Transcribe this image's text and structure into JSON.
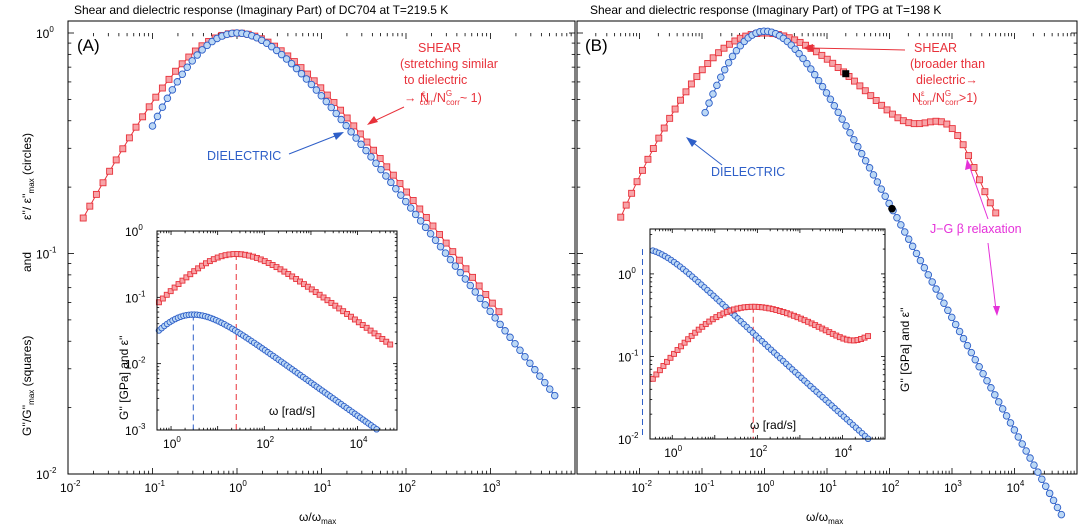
{
  "colors": {
    "shear": "#e8323b",
    "shear_fill": "#f7a4a8",
    "dielectric": "#2e5fc8",
    "dielectric_fill": "#bcd8f5",
    "annotation_magenta": "#e531d9",
    "marker_black": "#000000"
  },
  "y_axis_label": {
    "part1": "G''/G''",
    "part1_sub": "max",
    "part1_tail": " (squares)",
    "part2": "and",
    "part3": "ε''/ ε''",
    "part3_sub": "max",
    "part3_tail": " (circles)"
  },
  "chart_data": [
    {
      "panel": "A",
      "type": "scatter",
      "title": "Shear and dielectric response (Imaginary Part) of DC704 at T=219.5 K",
      "panel_label": "(A)",
      "xlabel": "ω/ω",
      "xlabel_sub": "max",
      "xscale": "log",
      "yscale": "log",
      "xlim": [
        0.01,
        10000
      ],
      "ylim": [
        0.01,
        1
      ],
      "xticks": [
        0.01,
        0.1,
        1,
        10,
        100,
        1000
      ],
      "yticks": [
        0.01,
        0.1,
        1
      ],
      "series": [
        {
          "kind": "shear",
          "marker": "square",
          "logx_range": [
            -1.82,
            3.1
          ],
          "n": 64,
          "peak_logx": 0,
          "left_slope": 0.72,
          "right_slope": 0.5,
          "width": 0.8
        },
        {
          "kind": "dielectric",
          "marker": "circle",
          "logx_range": [
            -1.0,
            3.76
          ],
          "n": 82,
          "peak_logx": 0,
          "left_slope": 0.92,
          "right_slope": 0.5,
          "width": 0.8
        }
      ],
      "annotations": [
        {
          "lines": [
            {
              "t": "SHEAR"
            },
            {
              "t": "(stretching similar"
            },
            {
              "t": "to dielectric"
            },
            {
              "t": "→ N",
              "sup": "ε",
              "sub": "corr",
              "t2": "/N",
              "sup2": "G",
              "sub2": "corr",
              "t3": "~ 1)"
            }
          ],
          "color": "shear"
        },
        {
          "lines": [
            {
              "t": "DIELECTRIC"
            }
          ],
          "color": "dielectric"
        }
      ],
      "inset": {
        "ylabel": "G'' [GPa] and ε''",
        "xlabel": "ω [rad/s]",
        "xlim": [
          0.5,
          70000
        ],
        "ylim": [
          0.001,
          1
        ],
        "xticks": [
          1,
          100,
          10000
        ],
        "yticks": [
          0.001,
          0.01,
          0.1,
          1
        ],
        "series": [
          {
            "kind": "shear",
            "marker": "square",
            "peak_x": 25,
            "peak_y": 0.45,
            "x_range": [
              0.55,
              50000
            ],
            "n": 60,
            "left_slope": 0.72,
            "right_slope": 0.5,
            "width": 0.8
          },
          {
            "kind": "dielectric",
            "marker": "circle",
            "peak_x": 3,
            "peak_y": 0.055,
            "x_range": [
              0.55,
              50000
            ],
            "n": 86,
            "left_slope": 0.92,
            "right_slope": 0.5,
            "width": 0.8
          }
        ],
        "peak_lines": [
          {
            "kind": "dielectric",
            "x": 3
          },
          {
            "kind": "shear",
            "x": 25
          }
        ]
      }
    },
    {
      "panel": "B",
      "type": "scatter",
      "title": "Shear and dielectric response (Imaginary Part) of TPG at T=198 K",
      "panel_label": "(B)",
      "xlabel": "ω/ω",
      "xlabel_sub": "max",
      "xscale": "log",
      "yscale": "log",
      "xlim": [
        0.001,
        100000
      ],
      "ylim": [
        0.01,
        1
      ],
      "xticks": [
        0.01,
        0.1,
        1,
        10,
        100,
        1000,
        10000
      ],
      "yticks": [],
      "series": [
        {
          "kind": "shear",
          "marker": "square",
          "logx_range": [
            -2.3,
            3.7
          ],
          "n": 70,
          "peak_logx": 0,
          "left_slope": 0.72,
          "right_slope": 0.3,
          "width": 0.6,
          "beta": {
            "logx": 3.0,
            "amp": 0.22,
            "sigma": 0.55
          }
        },
        {
          "kind": "dielectric",
          "marker": "circle",
          "logx_range": [
            -0.95,
            4.75
          ],
          "n": 92,
          "peak_logx": 0,
          "left_slope": 0.92,
          "right_slope": 0.55,
          "width": 0.7,
          "tail": {
            "logx": 3.8,
            "amp": 0.2,
            "sigma": 1.2
          }
        }
      ],
      "highlighted_points": [
        {
          "kind": "shear",
          "logx": 1.3
        },
        {
          "kind": "dielectric",
          "logx": 2.04
        }
      ],
      "annotations": [
        {
          "lines": [
            {
              "t": "SHEAR"
            },
            {
              "t": "(broader than"
            },
            {
              "t": "dielectric→"
            },
            {
              "t": "N",
              "sup": "ε",
              "sub": "corr",
              "t2": "/N",
              "sup2": "G",
              "sub2": "corr",
              "t3": ">1)"
            }
          ],
          "color": "shear"
        },
        {
          "lines": [
            {
              "t": "DIELECTRIC"
            }
          ],
          "color": "dielectric"
        },
        {
          "lines": [
            {
              "t": "J−G β relaxation"
            }
          ],
          "color": "annotation_magenta"
        }
      ],
      "inset": {
        "ylabel": "G'' [GPa] and ε''",
        "xlabel": "ω [rad/s]",
        "xlim": [
          0.3,
          100000
        ],
        "ylim": [
          0.01,
          3.5
        ],
        "xticks": [
          1,
          100,
          10000
        ],
        "yticks": [
          0.01,
          0.1,
          1
        ],
        "series": [
          {
            "kind": "dielectric",
            "marker": "circle",
            "peak_x": 0.2,
            "peak_y": 2.0,
            "x_range": [
              0.35,
              40000
            ],
            "n": 72,
            "left_slope": 0.92,
            "right_slope": 0.5,
            "width": 0.7,
            "tail": {
              "logx": 4.5,
              "amp": 0.12,
              "sigma": 1.0
            }
          },
          {
            "kind": "shear",
            "marker": "square",
            "peak_x": 80,
            "peak_y": 0.4,
            "x_range": [
              0.35,
              40000
            ],
            "n": 62,
            "left_slope": 0.72,
            "right_slope": 0.3,
            "width": 0.6,
            "beta": {
              "logx": 3.0,
              "amp": 0.3,
              "sigma": 0.5
            }
          }
        ],
        "peak_lines": [
          {
            "kind": "dielectric",
            "x": 0.2
          },
          {
            "kind": "shear",
            "x": 80
          }
        ]
      }
    }
  ]
}
